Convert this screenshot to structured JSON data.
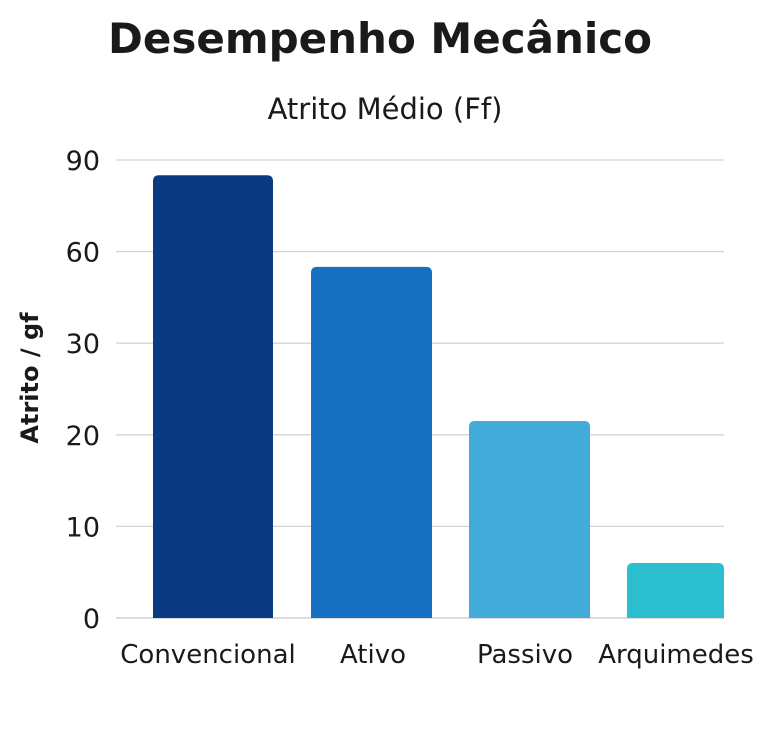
{
  "chart_data": {
    "type": "bar",
    "title": "Desempenho Mecânico",
    "subtitle": "Atrito Médio (Ff)",
    "xlabel": "",
    "ylabel": "Atrito / gf",
    "categories": [
      "Convencional",
      "Ativo",
      "Passivo",
      "Arquimedes"
    ],
    "values": [
      85,
      55,
      21.5,
      6
    ],
    "y_ticks": [
      "0",
      "10",
      "20",
      "30",
      "60",
      "90"
    ],
    "ylim": [
      0,
      90
    ],
    "grid": true,
    "legend": "none",
    "colors": [
      "#0a3a82",
      "#1570c2",
      "#42abdb",
      "#2bbfd0"
    ]
  }
}
